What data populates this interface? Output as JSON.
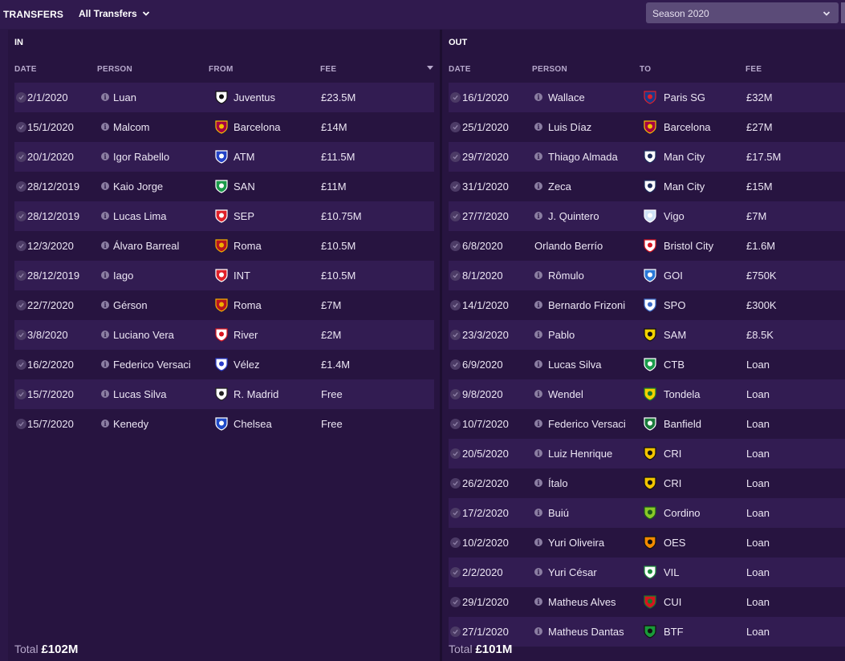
{
  "header": {
    "title": "TRANSFERS",
    "filter_label": "All Transfers",
    "season_label": "Season 2020"
  },
  "in": {
    "title": "IN",
    "columns": [
      "DATE",
      "PERSON",
      "FROM",
      "FEE"
    ],
    "total_label": "Total",
    "total_value": "£102M",
    "rows": [
      {
        "date": "2/1/2020",
        "person": "Luan",
        "club": "Juventus",
        "fee": "£23.5M",
        "crest": "juventus-crest-icon",
        "color": "#ffffff",
        "accent": "#111111"
      },
      {
        "date": "15/1/2020",
        "person": "Malcom",
        "club": "Barcelona",
        "fee": "£14M",
        "crest": "barcelona-crest-icon",
        "color": "#a50044",
        "accent": "#f2c000"
      },
      {
        "date": "20/1/2020",
        "person": "Igor Rabello",
        "club": "ATM",
        "fee": "£11.5M",
        "crest": "atm-crest-icon",
        "color": "#2342c7",
        "accent": "#ffffff"
      },
      {
        "date": "28/12/2019",
        "person": "Kaio Jorge",
        "club": "SAN",
        "fee": "£11M",
        "crest": "san-crest-icon",
        "color": "#1a9a4a",
        "accent": "#ffffff"
      },
      {
        "date": "28/12/2019",
        "person": "Lucas Lima",
        "club": "SEP",
        "fee": "£10.75M",
        "crest": "sep-crest-icon",
        "color": "#e0202a",
        "accent": "#ffffff"
      },
      {
        "date": "12/3/2020",
        "person": "Álvaro Barreal",
        "club": "Roma",
        "fee": "£10.5M",
        "crest": "roma-crest-icon",
        "color": "#b8141f",
        "accent": "#f0b000"
      },
      {
        "date": "28/12/2019",
        "person": "Iago",
        "club": "INT",
        "fee": "£10.5M",
        "crest": "int-crest-icon",
        "color": "#e0202a",
        "accent": "#ffffff"
      },
      {
        "date": "22/7/2020",
        "person": "Gérson",
        "club": "Roma",
        "fee": "£7M",
        "crest": "roma-crest-icon",
        "color": "#b8141f",
        "accent": "#f0b000"
      },
      {
        "date": "3/8/2020",
        "person": "Luciano Vera",
        "club": "River",
        "fee": "£2M",
        "crest": "river-crest-icon",
        "color": "#ffffff",
        "accent": "#d8141f"
      },
      {
        "date": "16/2/2020",
        "person": "Federico Versaci",
        "club": "Vélez",
        "fee": "£1.4M",
        "crest": "velez-crest-icon",
        "color": "#ffffff",
        "accent": "#2a3cc8"
      },
      {
        "date": "15/7/2020",
        "person": "Lucas Silva",
        "club": "R. Madrid",
        "fee": "Free",
        "crest": "real-madrid-crest-icon",
        "color": "#ffffff",
        "accent": "#222222"
      },
      {
        "date": "15/7/2020",
        "person": "Kenedy",
        "club": "Chelsea",
        "fee": "Free",
        "crest": "chelsea-crest-icon",
        "color": "#1e4ac8",
        "accent": "#ffffff"
      }
    ]
  },
  "out": {
    "title": "OUT",
    "columns": [
      "DATE",
      "PERSON",
      "TO",
      "FEE"
    ],
    "total_label": "Total",
    "total_value": "£101M",
    "rows": [
      {
        "date": "16/1/2020",
        "person": "Wallace",
        "club": "Paris SG",
        "fee": "£32M",
        "crest": "psg-crest-icon",
        "color": "#1a3a8a",
        "accent": "#e0202a",
        "info": true
      },
      {
        "date": "25/1/2020",
        "person": "Luis Díaz",
        "club": "Barcelona",
        "fee": "£27M",
        "crest": "barcelona-crest-icon",
        "color": "#a50044",
        "accent": "#f2c000",
        "info": true
      },
      {
        "date": "29/7/2020",
        "person": "Thiago Almada",
        "club": "Man City",
        "fee": "£17.5M",
        "crest": "man-city-crest-icon",
        "color": "#ffffff",
        "accent": "#1c2c5b",
        "info": true
      },
      {
        "date": "31/1/2020",
        "person": "Zeca",
        "club": "Man City",
        "fee": "£15M",
        "crest": "man-city-crest-icon",
        "color": "#ffffff",
        "accent": "#1c2c5b",
        "info": true
      },
      {
        "date": "27/7/2020",
        "person": "J. Quintero",
        "club": "Vigo",
        "fee": "£7M",
        "crest": "vigo-crest-icon",
        "color": "#cfe2f6",
        "accent": "#ffffff",
        "info": true
      },
      {
        "date": "6/8/2020",
        "person": "Orlando Berrío",
        "club": "Bristol City",
        "fee": "£1.6M",
        "crest": "bristol-city-crest-icon",
        "color": "#ffffff",
        "accent": "#d8141f",
        "info": false
      },
      {
        "date": "8/1/2020",
        "person": "Rômulo",
        "club": "GOI",
        "fee": "£750K",
        "crest": "goi-crest-icon",
        "color": "#2a78d8",
        "accent": "#ffffff",
        "info": true
      },
      {
        "date": "14/1/2020",
        "person": "Bernardo Frizoni",
        "club": "SPO",
        "fee": "£300K",
        "crest": "spo-crest-icon",
        "color": "#ffffff",
        "accent": "#3a6ac8",
        "info": true
      },
      {
        "date": "23/3/2020",
        "person": "Pablo",
        "club": "SAM",
        "fee": "£8.5K",
        "crest": "sam-crest-icon",
        "color": "#f2d200",
        "accent": "#111111",
        "info": true
      },
      {
        "date": "6/9/2020",
        "person": "Lucas Silva",
        "club": "CTB",
        "fee": "Loan",
        "crest": "ctb-crest-icon",
        "color": "#1a9a4a",
        "accent": "#ffffff",
        "info": true
      },
      {
        "date": "9/8/2020",
        "person": "Wendel",
        "club": "Tondela",
        "fee": "Loan",
        "crest": "tondela-crest-icon",
        "color": "#f2d200",
        "accent": "#1a7a2a",
        "info": true
      },
      {
        "date": "10/7/2020",
        "person": "Federico Versaci",
        "club": "Banfield",
        "fee": "Loan",
        "crest": "banfield-crest-icon",
        "color": "#1a7a3a",
        "accent": "#ffffff",
        "info": true
      },
      {
        "date": "20/5/2020",
        "person": "Luiz Henrique",
        "club": "CRI",
        "fee": "Loan",
        "crest": "cri-crest-icon",
        "color": "#f2c400",
        "accent": "#111111",
        "info": true
      },
      {
        "date": "26/2/2020",
        "person": "Ítalo",
        "club": "CRI",
        "fee": "Loan",
        "crest": "cri-crest-icon",
        "color": "#f2c400",
        "accent": "#111111",
        "info": true
      },
      {
        "date": "17/2/2020",
        "person": "Buiú",
        "club": "Cordino",
        "fee": "Loan",
        "crest": "cordino-crest-icon",
        "color": "#8ac828",
        "accent": "#1a5a1a",
        "info": true
      },
      {
        "date": "10/2/2020",
        "person": "Yuri Oliveira",
        "club": "OES",
        "fee": "Loan",
        "crest": "oes-crest-icon",
        "color": "#f28a00",
        "accent": "#111111",
        "info": true
      },
      {
        "date": "2/2/2020",
        "person": "Yuri César",
        "club": "VIL",
        "fee": "Loan",
        "crest": "vil-crest-icon",
        "color": "#ffffff",
        "accent": "#1a8a3a",
        "info": true
      },
      {
        "date": "29/1/2020",
        "person": "Matheus Alves",
        "club": "CUI",
        "fee": "Loan",
        "crest": "cui-crest-icon",
        "color": "#d8141f",
        "accent": "#1a7a2a",
        "info": true
      },
      {
        "date": "27/1/2020",
        "person": "Matheus Dantas",
        "club": "BTF",
        "fee": "Loan",
        "crest": "btf-crest-icon",
        "color": "#1a9a3a",
        "accent": "#111111",
        "info": true
      }
    ]
  }
}
